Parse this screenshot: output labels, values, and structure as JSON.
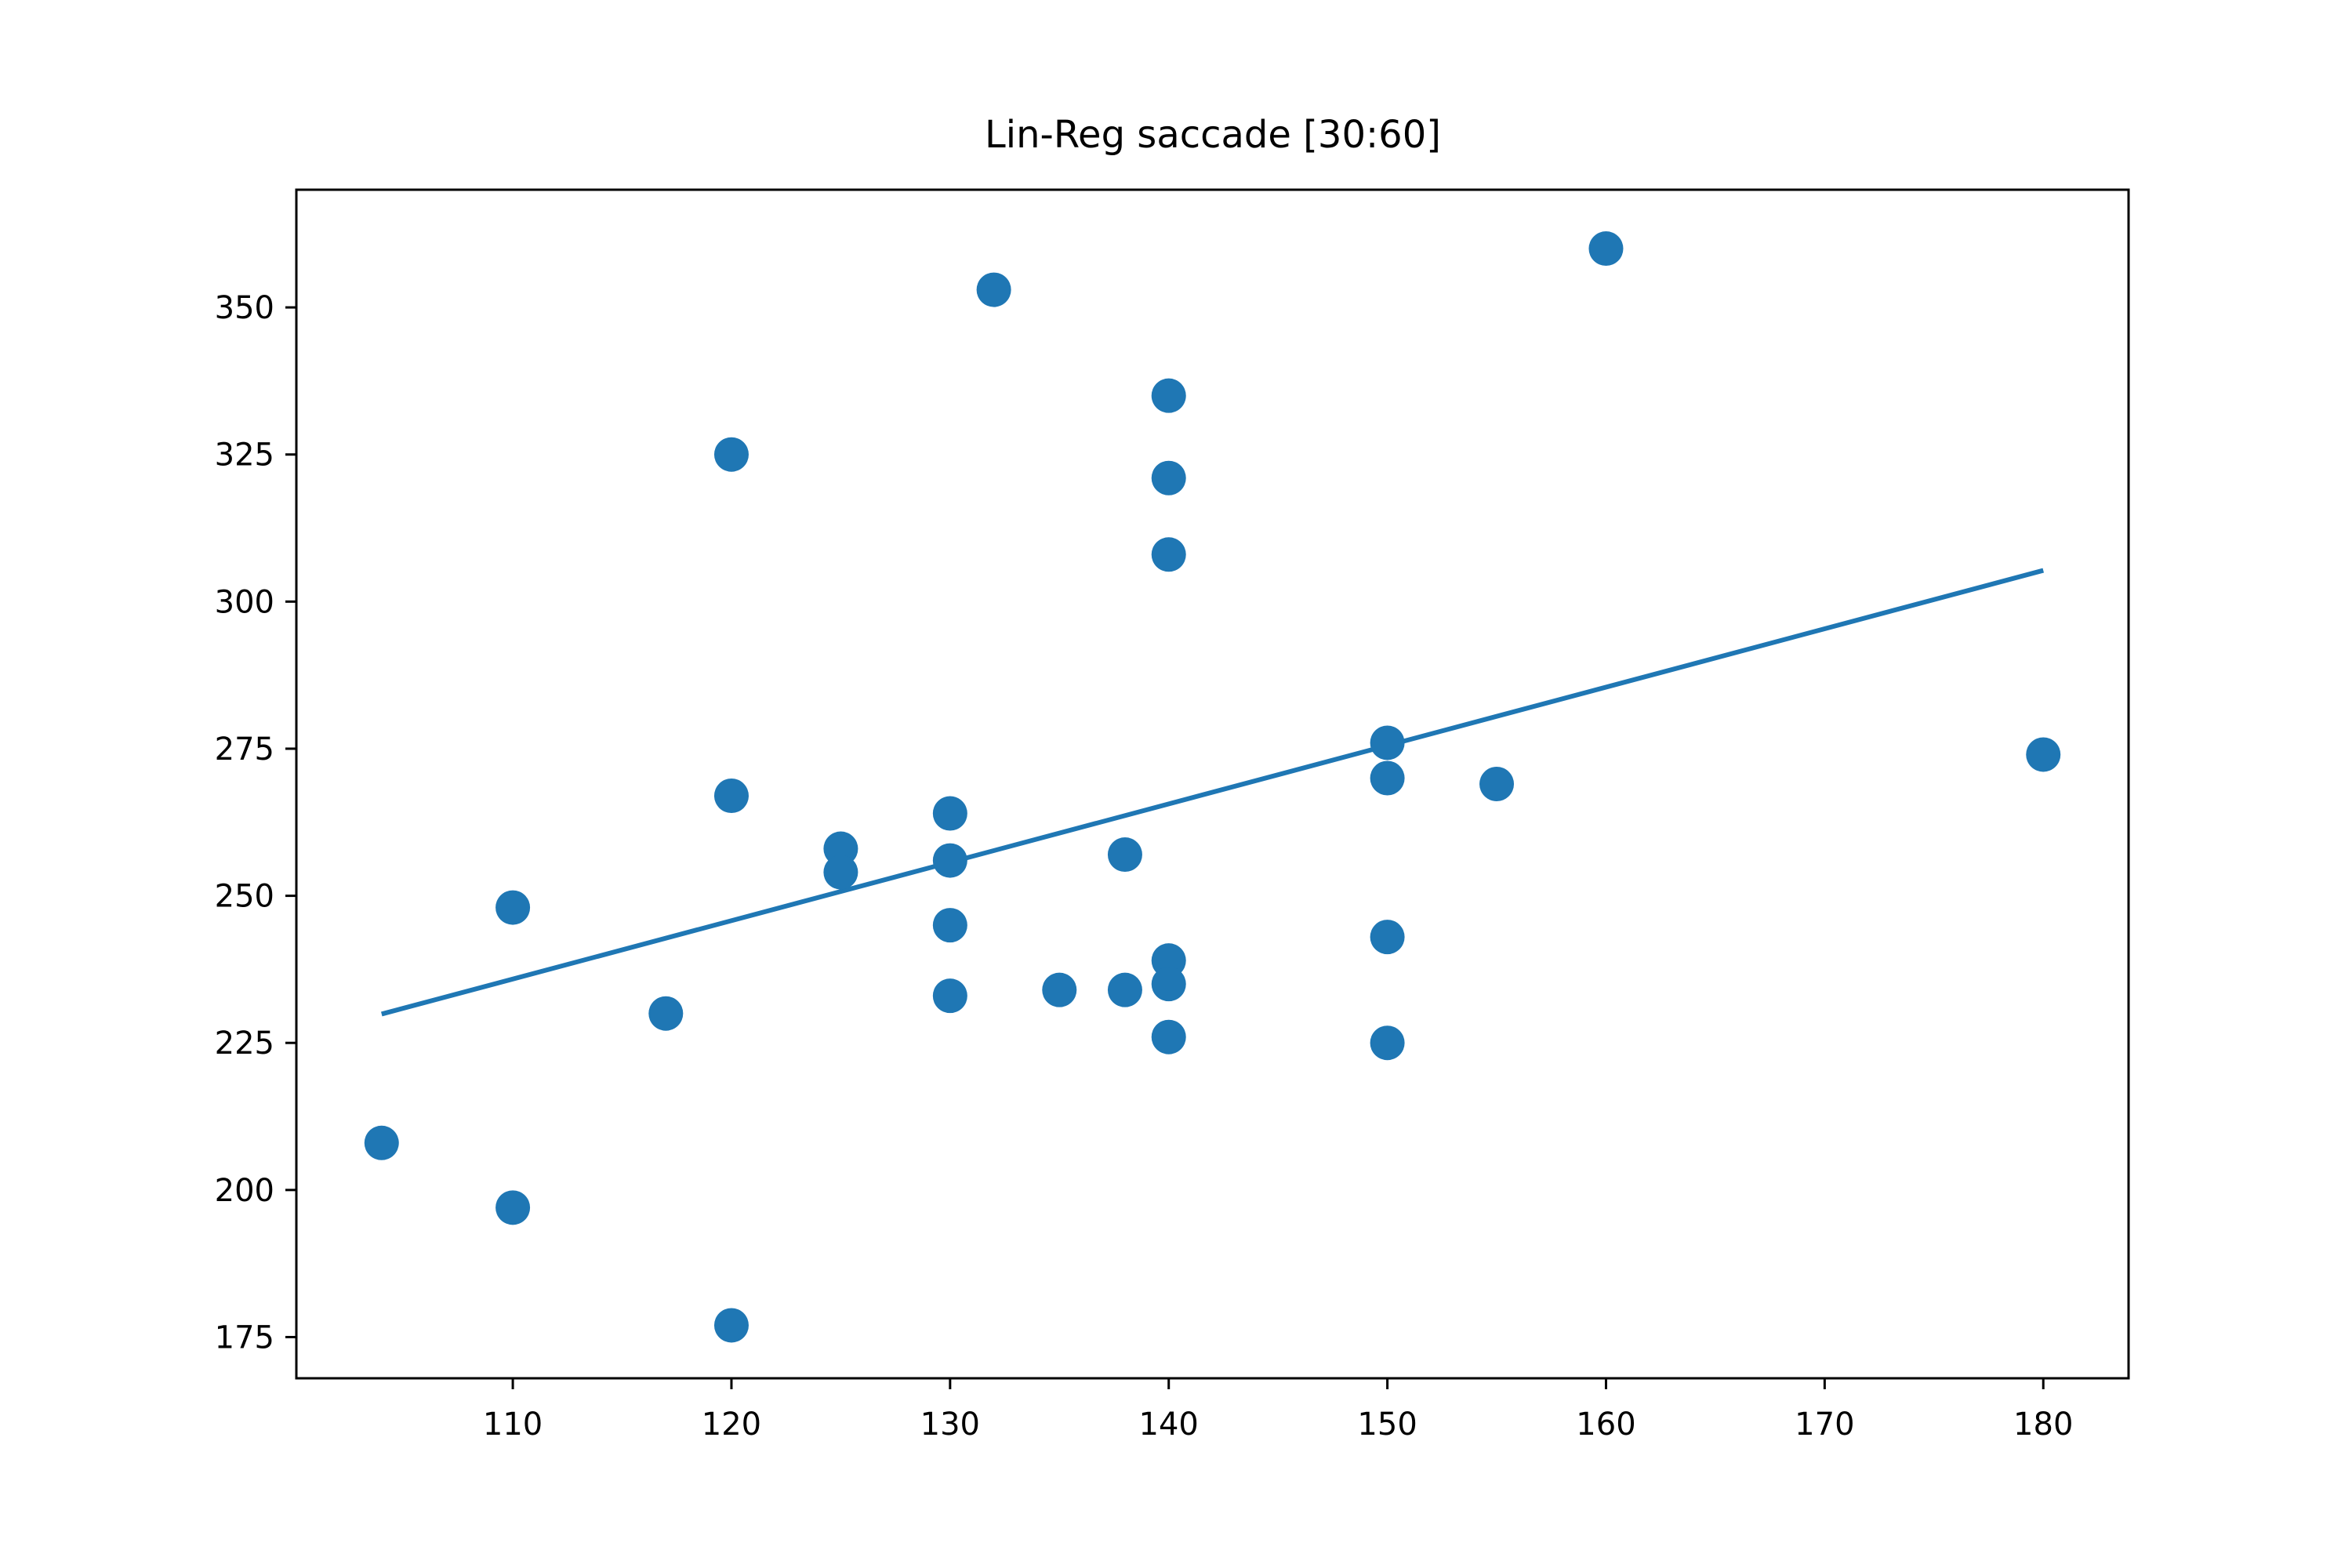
{
  "chart_data": {
    "type": "scatter",
    "title": "Lin-Reg saccade [30:60]",
    "xlabel": "",
    "ylabel": "",
    "xlim": [
      100.1,
      183.9
    ],
    "ylim": [
      168,
      370
    ],
    "xticks": [
      110,
      120,
      130,
      140,
      150,
      160,
      170,
      180
    ],
    "yticks": [
      175,
      200,
      225,
      250,
      275,
      300,
      325,
      350
    ],
    "grid": false,
    "legend": null,
    "color": "#1f77b4",
    "series": [
      {
        "type": "scatter",
        "points": [
          {
            "x": 104,
            "y": 208
          },
          {
            "x": 110,
            "y": 248
          },
          {
            "x": 110,
            "y": 197
          },
          {
            "x": 117,
            "y": 230
          },
          {
            "x": 120,
            "y": 325
          },
          {
            "x": 120,
            "y": 267
          },
          {
            "x": 120,
            "y": 177
          },
          {
            "x": 125,
            "y": 258
          },
          {
            "x": 125,
            "y": 254
          },
          {
            "x": 130,
            "y": 264
          },
          {
            "x": 130,
            "y": 256
          },
          {
            "x": 130,
            "y": 245
          },
          {
            "x": 130,
            "y": 233
          },
          {
            "x": 132,
            "y": 353
          },
          {
            "x": 135,
            "y": 234
          },
          {
            "x": 138,
            "y": 257
          },
          {
            "x": 138,
            "y": 234
          },
          {
            "x": 140,
            "y": 335
          },
          {
            "x": 140,
            "y": 321
          },
          {
            "x": 140,
            "y": 308
          },
          {
            "x": 140,
            "y": 239
          },
          {
            "x": 140,
            "y": 235
          },
          {
            "x": 140,
            "y": 226
          },
          {
            "x": 150,
            "y": 276
          },
          {
            "x": 150,
            "y": 270
          },
          {
            "x": 150,
            "y": 243
          },
          {
            "x": 150,
            "y": 225
          },
          {
            "x": 155,
            "y": 269
          },
          {
            "x": 160,
            "y": 360
          },
          {
            "x": 180,
            "y": 274
          }
        ]
      },
      {
        "type": "line",
        "points": [
          {
            "x": 104,
            "y": 229.9
          },
          {
            "x": 180,
            "y": 305.3
          }
        ]
      }
    ]
  }
}
